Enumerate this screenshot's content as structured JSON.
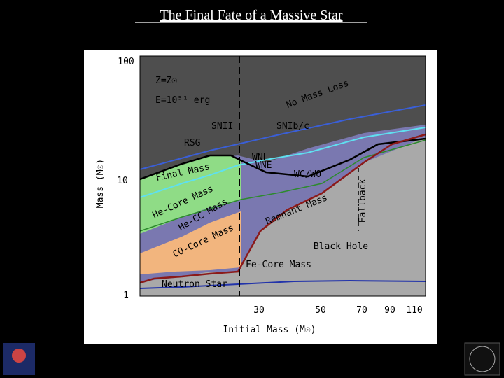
{
  "slide_title": "The Final Fate of a Massive Star",
  "chart": {
    "y_axis_label": "Mass (M☉)",
    "x_axis_label": "Initial Mass (M☉)",
    "y_tick_labels": [
      "100",
      "10",
      "1"
    ],
    "x_tick_labels": [
      "30",
      "50",
      "70",
      "90",
      "110"
    ],
    "annotations": {
      "metallicity": "Z=Z☉",
      "energy": "E=10⁵¹ erg",
      "no_mass_loss": "No Mass Loss",
      "snii": "SNII",
      "snibc": "SNIb/c",
      "rsg": "RSG",
      "wnl": "WNL",
      "wne": "WNE",
      "wcwo": "WC/WO",
      "final_mass": "Final Mass",
      "he_core": "He-Core Mass",
      "he_cc": "He-CC Mass",
      "co_core": "CO-Core Mass",
      "remnant": "Remnant Mass",
      "fallback": "Fallback",
      "black_hole": "Black Hole",
      "fe_core": "Fe-Core Mass",
      "neutron_star": "Neutron Star"
    }
  }
}
